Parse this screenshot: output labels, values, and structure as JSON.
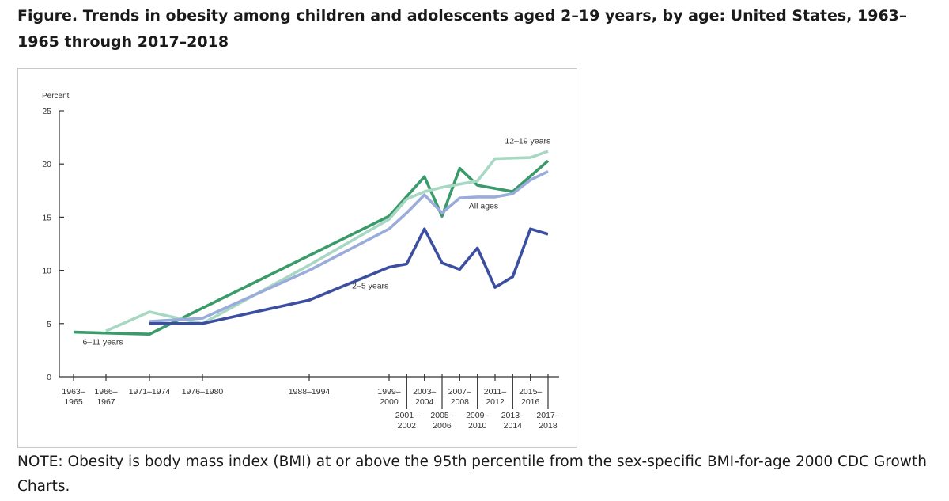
{
  "figure": {
    "title": "Figure. Trends in obesity among children and adolescents aged 2–19 years, by age: United States, 1963–1965 through 2017–2018",
    "note": "NOTE: Obesity is body mass index (BMI) at or above the 95th percentile from the sex-specific BMI-for-age 2000 CDC Growth Charts."
  },
  "chart_data": {
    "type": "line",
    "ylabel": "Percent",
    "ylim": [
      0,
      25
    ],
    "yticks": [
      0,
      5,
      10,
      15,
      20,
      25
    ],
    "grid": false,
    "periods": [
      {
        "id": "1963",
        "label": [
          "1963–",
          "1965"
        ],
        "row": "top",
        "x": 1964
      },
      {
        "id": "1966",
        "label": [
          "1966–",
          "1967"
        ],
        "row": "top",
        "x": 1966.5
      },
      {
        "id": "1971",
        "label": [
          "1971–1974"
        ],
        "row": "top",
        "x": 1972.5
      },
      {
        "id": "1976",
        "label": [
          "1976–1980"
        ],
        "row": "top",
        "x": 1978
      },
      {
        "id": "1988",
        "label": [
          "1988–1994"
        ],
        "row": "top",
        "x": 1991
      },
      {
        "id": "1999",
        "label": [
          "1999–",
          "2000"
        ],
        "row": "top",
        "x": 1999.5
      },
      {
        "id": "2001",
        "label": [
          "2001–",
          "2002"
        ],
        "row": "bottom",
        "x": 2001.5
      },
      {
        "id": "2003",
        "label": [
          "2003–",
          "2004"
        ],
        "row": "top",
        "x": 2003.5
      },
      {
        "id": "2005",
        "label": [
          "2005–",
          "2006"
        ],
        "row": "bottom",
        "x": 2005.5
      },
      {
        "id": "2007",
        "label": [
          "2007–",
          "2008"
        ],
        "row": "top",
        "x": 2007.5
      },
      {
        "id": "2009",
        "label": [
          "2009–",
          "2010"
        ],
        "row": "bottom",
        "x": 2009.5
      },
      {
        "id": "2011",
        "label": [
          "2011–",
          "2012"
        ],
        "row": "top",
        "x": 2011.5
      },
      {
        "id": "2013",
        "label": [
          "2013–",
          "2014"
        ],
        "row": "bottom",
        "x": 2013.5
      },
      {
        "id": "2015",
        "label": [
          "2015–",
          "2016"
        ],
        "row": "top",
        "x": 2015.5
      },
      {
        "id": "2017",
        "label": [
          "2017–",
          "2018"
        ],
        "row": "bottom",
        "x": 2017.5
      }
    ],
    "series": [
      {
        "name": "6–11 years",
        "color": "#3a9a6a",
        "points": [
          [
            1964,
            4.2
          ],
          [
            1972.5,
            4.0
          ],
          [
            1999.5,
            15.1
          ],
          [
            2003.5,
            18.8
          ],
          [
            2005.5,
            15.1
          ],
          [
            2007.5,
            19.6
          ],
          [
            2009.5,
            18.0
          ],
          [
            2013.5,
            17.4
          ],
          [
            2017.5,
            20.3
          ]
        ]
      },
      {
        "name": "12–19 years",
        "color": "#a8d8c4",
        "points": [
          [
            1966.5,
            4.3
          ],
          [
            1972.5,
            6.1
          ],
          [
            1978,
            5.0
          ],
          [
            1991,
            10.5
          ],
          [
            1999.5,
            14.8
          ],
          [
            2001.5,
            16.7
          ],
          [
            2003.5,
            17.4
          ],
          [
            2005.5,
            17.8
          ],
          [
            2007.5,
            18.1
          ],
          [
            2009.5,
            18.4
          ],
          [
            2011.5,
            20.5
          ],
          [
            2015.5,
            20.6
          ],
          [
            2017.5,
            21.2
          ]
        ]
      },
      {
        "name": "All ages",
        "color": "#9aacda",
        "points": [
          [
            1972.5,
            5.2
          ],
          [
            1978,
            5.5
          ],
          [
            1991,
            10.0
          ],
          [
            1999.5,
            13.9
          ],
          [
            2001.5,
            15.4
          ],
          [
            2003.5,
            17.1
          ],
          [
            2005.5,
            15.4
          ],
          [
            2007.5,
            16.8
          ],
          [
            2009.5,
            16.9
          ],
          [
            2011.5,
            16.9
          ],
          [
            2013.5,
            17.2
          ],
          [
            2015.5,
            18.5
          ],
          [
            2017.5,
            19.3
          ]
        ]
      },
      {
        "name": "2–5 years",
        "color": "#3c4ea0",
        "points": [
          [
            1972.5,
            5.0
          ],
          [
            1978,
            5.0
          ],
          [
            1991,
            7.2
          ],
          [
            1999.5,
            10.3
          ],
          [
            2001.5,
            10.6
          ],
          [
            2003.5,
            13.9
          ],
          [
            2005.5,
            10.7
          ],
          [
            2007.5,
            10.1
          ],
          [
            2009.5,
            12.1
          ],
          [
            2011.5,
            8.4
          ],
          [
            2013.5,
            9.4
          ],
          [
            2015.5,
            13.9
          ],
          [
            2017.5,
            13.4
          ]
        ]
      }
    ],
    "annotations": [
      {
        "series": "6–11 years",
        "x": 1964.7,
        "y": 3.0,
        "anchor": "start"
      },
      {
        "series": "2–5 years",
        "x": 1997.5,
        "y": 8.3,
        "anchor": "middle"
      },
      {
        "series": "All ages",
        "x": 2010.2,
        "y": 15.8,
        "anchor": "middle"
      },
      {
        "series": "12–19 years",
        "x": 2015.2,
        "y": 21.9,
        "anchor": "middle"
      }
    ]
  }
}
